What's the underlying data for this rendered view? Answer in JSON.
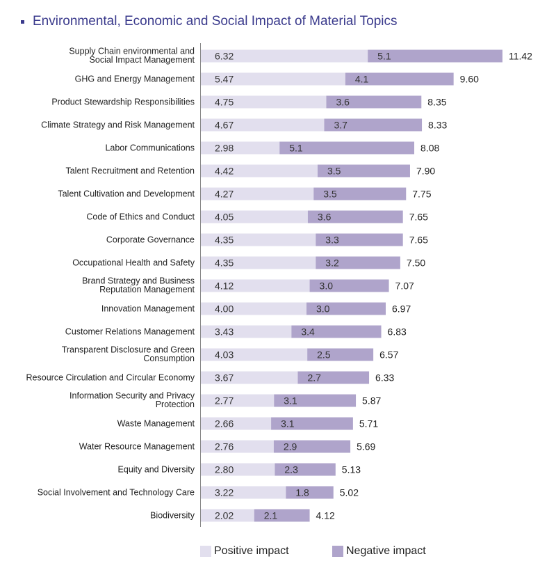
{
  "title": "Environmental, Economic and Social Impact of Material Topics",
  "colors": {
    "title": "#3a3a8c",
    "bullet": "#3a3a8c",
    "positive": "#e2dfee",
    "negative": "#afa4cb",
    "axis": "#888888"
  },
  "chart_data": {
    "type": "bar",
    "orientation": "horizontal",
    "stacked": true,
    "categories": [
      "Supply Chain environmental and Social Impact Management",
      "GHG and Energy Management",
      "Product Stewardship Responsibilities",
      "Climate Strategy and Risk Management",
      "Labor Communications",
      "Talent Recruitment and Retention",
      "Talent Cultivation and Development",
      "Code of Ethics and Conduct",
      "Corporate Governance",
      "Occupational Health and Safety",
      "Brand Strategy and Business Reputation Management",
      "Innovation Management",
      "Customer Relations Management",
      "Transparent Disclosure and Green Consumption",
      "Resource Circulation and Circular Economy",
      "Information Security and Privacy Protection",
      "Waste Management",
      "Water Resource Management",
      "Equity and Diversity",
      "Social Involvement and Technology Care",
      "Biodiversity"
    ],
    "series": [
      {
        "name": "Positive impact",
        "values": [
          6.32,
          5.47,
          4.75,
          4.67,
          2.98,
          4.42,
          4.27,
          4.05,
          4.35,
          4.35,
          4.12,
          4.0,
          3.43,
          4.03,
          3.67,
          2.77,
          2.66,
          2.76,
          2.8,
          3.22,
          2.02
        ],
        "labels": [
          "6.32",
          "5.47",
          "4.75",
          "4.67",
          "2.98",
          "4.42",
          "4.27",
          "4.05",
          "4.35",
          "4.35",
          "4.12",
          "4.00",
          "3.43",
          "4.03",
          "3.67",
          "2.77",
          "2.66",
          "2.76",
          "2.80",
          "3.22",
          "2.02"
        ]
      },
      {
        "name": "Negative impact",
        "values": [
          5.1,
          4.1,
          3.6,
          3.7,
          5.1,
          3.5,
          3.5,
          3.6,
          3.3,
          3.2,
          3.0,
          3.0,
          3.4,
          2.5,
          2.7,
          3.1,
          3.1,
          2.9,
          2.3,
          1.8,
          2.1
        ],
        "labels": [
          "5.1",
          "4.1",
          "3.6",
          "3.7",
          "5.1",
          "3.5",
          "3.5",
          "3.6",
          "3.3",
          "3.2",
          "3.0",
          "3.0",
          "3.4",
          "2.5",
          "2.7",
          "3.1",
          "3.1",
          "2.9",
          "2.3",
          "1.8",
          "2.1"
        ]
      }
    ],
    "totals": [
      "11.42",
      "9.60",
      "8.35",
      "8.33",
      "8.08",
      "7.90",
      "7.75",
      "7.65",
      "7.65",
      "7.50",
      "7.07",
      "6.97",
      "6.83",
      "6.57",
      "6.33",
      "5.87",
      "5.71",
      "5.69",
      "5.13",
      "5.02",
      "4.12"
    ],
    "xlim": [
      0,
      12
    ],
    "grid": false,
    "legend_position": "bottom"
  }
}
